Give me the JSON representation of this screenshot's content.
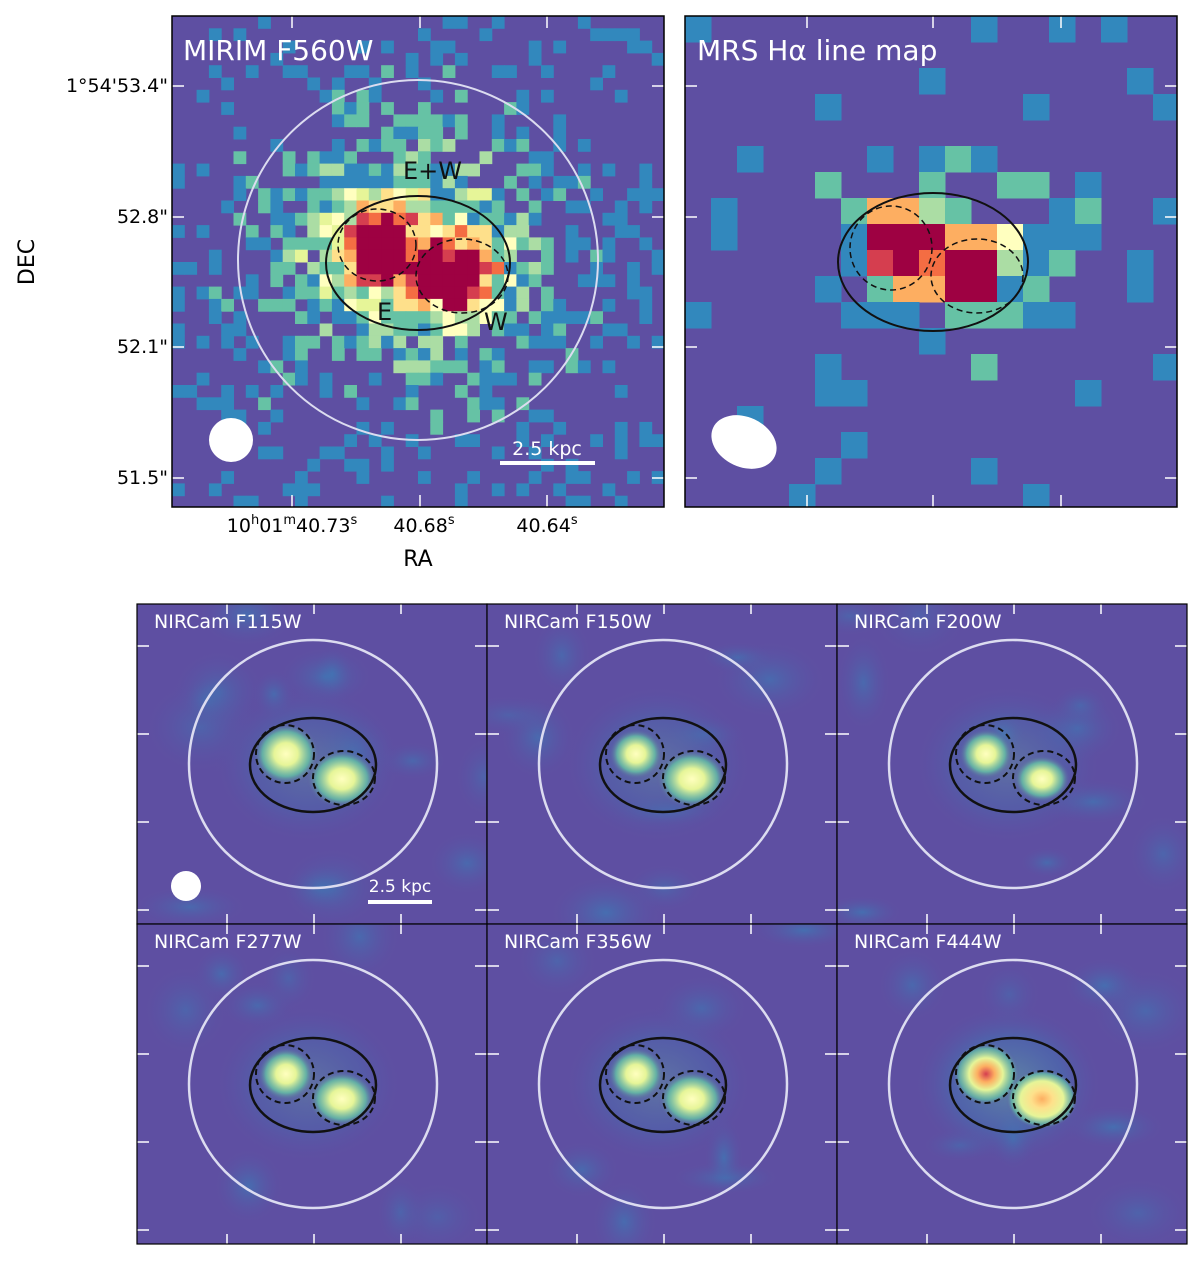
{
  "figure": {
    "top_panels": [
      {
        "id": "mirim",
        "title": "MIRIM F560W",
        "labels": {
          "ew": "E+W",
          "e": "E",
          "w": "W"
        },
        "scalebar": "2.5 kpc",
        "has_circle": true
      },
      {
        "id": "mrs",
        "title": "MRS Hα line map",
        "has_circle": false
      }
    ],
    "axes": {
      "ylabel": "DEC",
      "xlabel": "RA",
      "yticks": [
        "1°54'53.4\"",
        "52.8\"",
        "52.1\"",
        "51.5\""
      ],
      "xticks": [
        {
          "main": "10",
          "sup1": "h",
          "mid": "01",
          "sup2": "m",
          "rest": "40.73",
          "sup3": "s"
        },
        {
          "main": "40.68",
          "sup3": "s"
        },
        {
          "main": "40.64",
          "sup3": "s"
        }
      ]
    },
    "nircam_panels": [
      {
        "title": "NIRCam F115W",
        "scalebar": "2.5 kpc"
      },
      {
        "title": "NIRCam F150W"
      },
      {
        "title": "NIRCam F200W"
      },
      {
        "title": "NIRCam F277W"
      },
      {
        "title": "NIRCam F356W"
      },
      {
        "title": "NIRCam F444W"
      }
    ],
    "colors": {
      "background": "#5e4fa2",
      "low": "#3288bd",
      "mid": "#66c2a5",
      "high": "#e6f598",
      "peak": "#d53e4f",
      "max": "#9e0142"
    }
  }
}
